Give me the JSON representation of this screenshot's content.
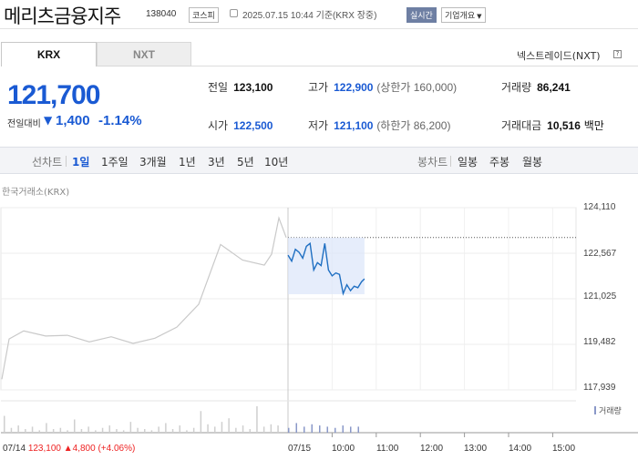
{
  "header": {
    "name": "메리츠금융지주",
    "code": "138040",
    "market": "코스피",
    "datetime": "2025.07.15 10:44 기준(KRX 장중)",
    "realtime": "실시간",
    "company_info": "기업개요"
  },
  "tabs": {
    "krx": "KRX",
    "nxt": "NXT",
    "nxt_link": "넥스트레이드(NXT)",
    "help": "?"
  },
  "price": {
    "current": "121,700",
    "change_label": "전일대비",
    "change_arrow": "▼",
    "change": "1,400",
    "change_pct": "-1.14%",
    "direction": "down"
  },
  "stats": {
    "prev_close": {
      "label": "전일",
      "value": "123,100"
    },
    "high": {
      "label": "고가",
      "value": "122,900",
      "note": "(상한가 160,000)"
    },
    "volume": {
      "label": "거래량",
      "value": "86,241"
    },
    "open": {
      "label": "시가",
      "value": "122,500"
    },
    "low": {
      "label": "저가",
      "value": "121,100",
      "note": "(하한가 86,200)"
    },
    "amount": {
      "label": "거래대금",
      "value": "10,516",
      "unit": "백만"
    }
  },
  "periods": {
    "line_label": "선차트",
    "items": [
      "1일",
      "1주일",
      "3개월",
      "1년",
      "3년",
      "5년",
      "10년"
    ],
    "active": "1일",
    "candle_label": "봉차트",
    "candle_items": [
      "일봉",
      "주봉",
      "월봉"
    ]
  },
  "chart": {
    "source": "한국거래소(KRX)",
    "prev_info": {
      "date": "07/14",
      "price": "123,100",
      "arrow": "▲",
      "change": "4,800",
      "pct": "(+4.06%)"
    },
    "volume_legend": "거래량",
    "colors": {
      "today": "#1f6fc2",
      "prev_day": "#c9c9c9",
      "band": "#dbe5fa",
      "up": "#e22",
      "down": "#1a5ad3"
    }
  },
  "chart_data": {
    "type": "line",
    "title": "",
    "ylabel": "",
    "xlabel": "",
    "y_ticks": [
      "124,110",
      "122,567",
      "121,025",
      "119,482",
      "117,939"
    ],
    "ylim": [
      117939,
      124110
    ],
    "x_ticks": [
      "07/14",
      "07/15",
      "10:00",
      "11:00",
      "12:00",
      "13:00",
      "14:00",
      "15:00"
    ],
    "prev_close_line": 123100,
    "series": [
      {
        "name": "",
        "x": [
          "07/14 09:00",
          "07/14 09:10",
          "07/14 09:30",
          "07/14 10:00",
          "07/14 10:30",
          "07/14 11:00",
          "07/14 11:30",
          "07/14 12:00",
          "07/14 12:30",
          "07/14 13:00",
          "07/14 13:30",
          "07/14 14:00",
          "07/14 14:30",
          "07/14 15:00",
          "07/14 15:10",
          "07/14 15:20",
          "07/14 15:30"
        ],
        "values": [
          118300,
          119700,
          119900,
          119800,
          119750,
          119600,
          119700,
          119550,
          119650,
          120100,
          120800,
          122900,
          122300,
          122200,
          122500,
          123800,
          123100
        ]
      },
      {
        "name": "",
        "x": [
          "09:00",
          "09:05",
          "09:10",
          "09:15",
          "09:20",
          "09:25",
          "09:30",
          "09:35",
          "09:40",
          "09:45",
          "09:50",
          "09:55",
          "10:00",
          "10:05",
          "10:10",
          "10:15",
          "10:20",
          "10:25",
          "10:30",
          "10:35",
          "10:40",
          "10:44"
        ],
        "values": [
          122500,
          122300,
          122700,
          122600,
          122400,
          122800,
          122900,
          122000,
          122250,
          122150,
          122900,
          122000,
          121800,
          121900,
          121850,
          121200,
          121500,
          121300,
          121450,
          121400,
          121600,
          121700
        ]
      }
    ],
    "volume": {
      "name": "거래량",
      "values": [
        14,
        4,
        6,
        3,
        5,
        2,
        8,
        3,
        4,
        2,
        11,
        3,
        5,
        2,
        4,
        6,
        3,
        2,
        9,
        4,
        3,
        2,
        5,
        8,
        3,
        6,
        2,
        4,
        18,
        7,
        5,
        9,
        12,
        4,
        6,
        3,
        22,
        5,
        7,
        6,
        4,
        8,
        5,
        7,
        6,
        5,
        4,
        6,
        5,
        5
      ]
    },
    "grid": true,
    "legend": "bottom-right"
  }
}
